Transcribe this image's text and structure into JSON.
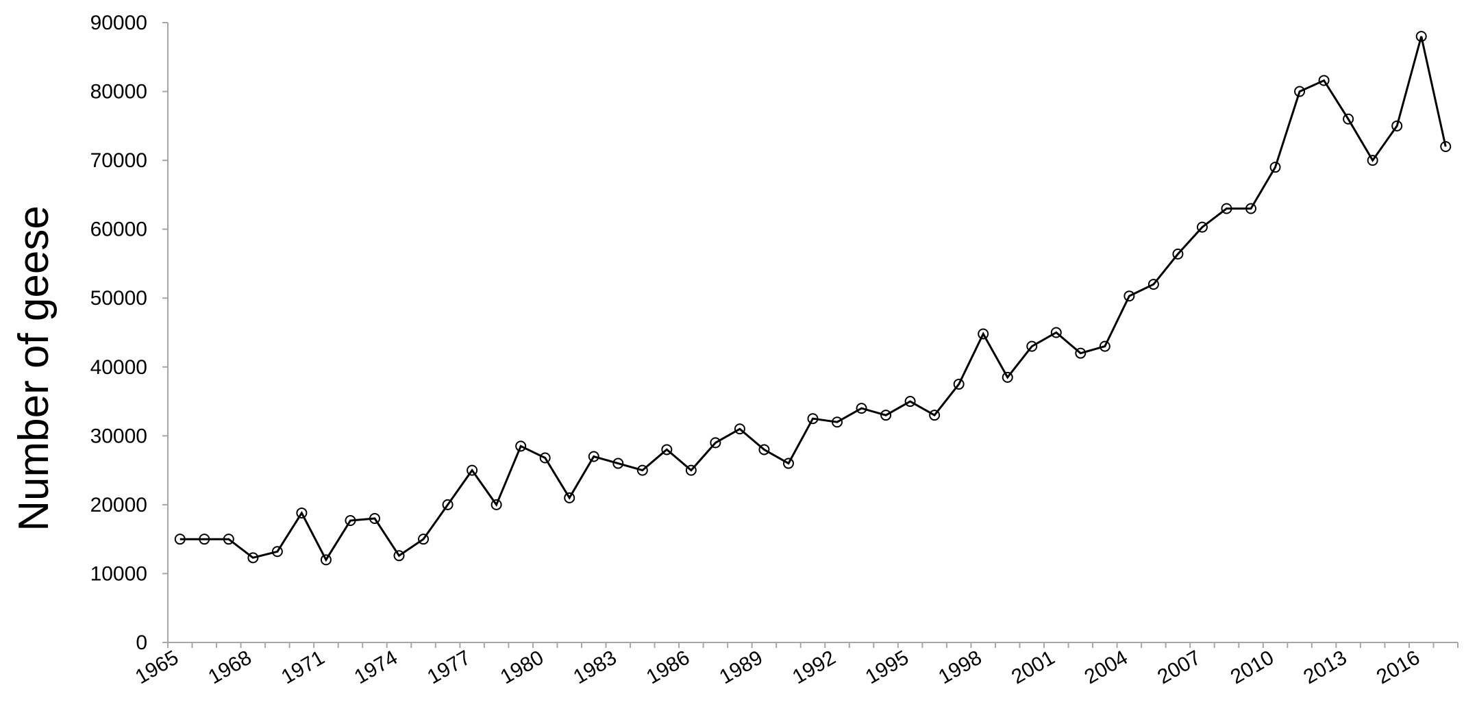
{
  "chart_data": {
    "type": "line",
    "title": "",
    "xlabel": "",
    "ylabel": "Number of geese",
    "ylim": [
      0,
      90000
    ],
    "yticks": [
      0,
      10000,
      20000,
      30000,
      40000,
      50000,
      60000,
      70000,
      80000,
      90000
    ],
    "xticks": [
      "1965",
      "1968",
      "1971",
      "1974",
      "1977",
      "1980",
      "1983",
      "1986",
      "1989",
      "1992",
      "1995",
      "1998",
      "2001",
      "2004",
      "2007",
      "2010",
      "2013",
      "2016"
    ],
    "grid": false,
    "legend": false,
    "x": [
      1965,
      1966,
      1967,
      1968,
      1969,
      1970,
      1971,
      1972,
      1973,
      1974,
      1975,
      1976,
      1977,
      1978,
      1979,
      1980,
      1981,
      1982,
      1983,
      1984,
      1985,
      1986,
      1987,
      1988,
      1989,
      1990,
      1991,
      1992,
      1993,
      1994,
      1995,
      1996,
      1997,
      1998,
      1999,
      2000,
      2001,
      2002,
      2003,
      2004,
      2005,
      2006,
      2007,
      2008,
      2009,
      2010,
      2011,
      2012,
      2013,
      2014,
      2015,
      2016,
      2017
    ],
    "series": [
      {
        "values": [
          15000,
          15000,
          15000,
          12300,
          13200,
          18800,
          12000,
          17700,
          18000,
          12600,
          15000,
          20000,
          25000,
          20000,
          28500,
          26800,
          21000,
          27000,
          26000,
          25000,
          28000,
          25000,
          29000,
          31000,
          28000,
          26000,
          32500,
          32000,
          34000,
          33000,
          35000,
          33000,
          37500,
          44800,
          38500,
          43000,
          45000,
          42000,
          43000,
          50300,
          52000,
          56400,
          60300,
          63000,
          63000,
          69000,
          80000,
          81600,
          76000,
          70000,
          75000,
          88000,
          72000
        ]
      }
    ]
  }
}
